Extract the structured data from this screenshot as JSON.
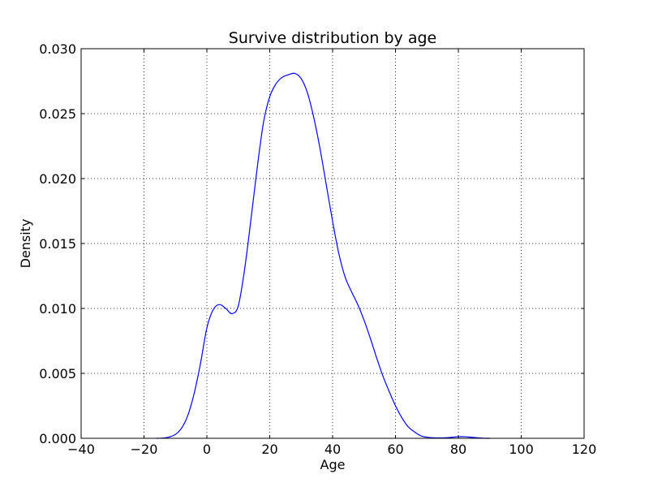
{
  "chart_data": {
    "type": "line",
    "title": "Survive distribution by age",
    "xlabel": "Age",
    "ylabel": "Density",
    "xlim": [
      -40,
      120
    ],
    "ylim": [
      0,
      0.03
    ],
    "xticks": [
      -40,
      -20,
      0,
      20,
      40,
      60,
      80,
      100,
      120
    ],
    "xtick_labels": [
      "−40",
      "−20",
      "0",
      "20",
      "40",
      "60",
      "80",
      "100",
      "120"
    ],
    "yticks": [
      0,
      0.005,
      0.01,
      0.015,
      0.02,
      0.025,
      0.03
    ],
    "ytick_labels": [
      "0.000",
      "0.005",
      "0.010",
      "0.015",
      "0.020",
      "0.025",
      "0.030"
    ],
    "grid": true,
    "grid_style": "dotted",
    "line_color": "#0000ff",
    "series": [
      {
        "x": [
          -16,
          -14,
          -12,
          -10,
          -8,
          -6,
          -4,
          -2,
          0,
          2,
          4,
          6,
          8,
          10,
          12,
          14,
          16,
          18,
          20,
          22,
          24,
          26,
          28,
          30,
          32,
          34,
          36,
          38,
          40,
          42,
          44,
          46,
          48,
          50,
          52,
          54,
          56,
          58,
          60,
          62,
          64,
          66,
          68,
          70,
          72,
          74,
          76,
          78,
          80,
          82,
          84,
          86,
          88,
          90
        ],
        "y": [
          0.0,
          2e-05,
          0.0001,
          0.0003,
          0.0008,
          0.0018,
          0.0035,
          0.0058,
          0.0085,
          0.0099,
          0.0103,
          0.01,
          0.0096,
          0.0102,
          0.013,
          0.0168,
          0.0208,
          0.0243,
          0.0263,
          0.0273,
          0.0278,
          0.028,
          0.0281,
          0.0277,
          0.0266,
          0.0247,
          0.0223,
          0.0195,
          0.0167,
          0.0142,
          0.0124,
          0.0113,
          0.0103,
          0.0091,
          0.0077,
          0.0062,
          0.0048,
          0.0036,
          0.0025,
          0.0016,
          0.0009,
          0.0005,
          0.0002,
          8e-05,
          4e-05,
          3e-05,
          4e-05,
          8e-05,
          0.00012,
          0.00012,
          8e-05,
          4e-05,
          1e-05,
          0.0
        ]
      }
    ]
  }
}
